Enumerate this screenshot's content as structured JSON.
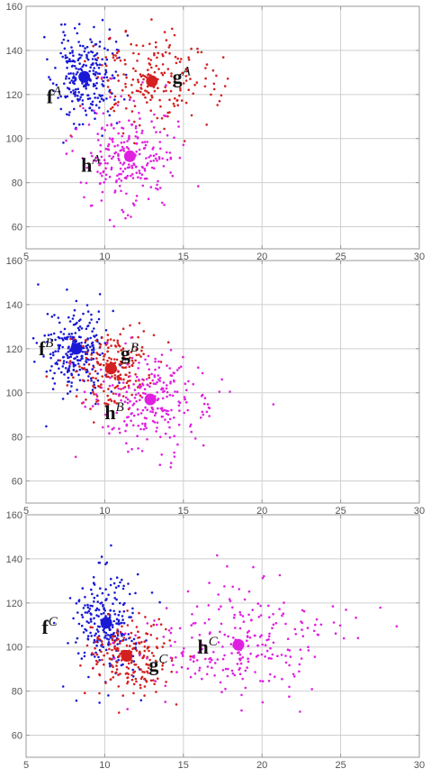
{
  "chart_data": [
    {
      "type": "scatter",
      "xlim": [
        5,
        30
      ],
      "ylim": [
        50,
        160
      ],
      "x_ticks": [
        5,
        10,
        15,
        20,
        25,
        30
      ],
      "y_ticks": [
        60,
        80,
        100,
        120,
        140,
        160
      ],
      "grid": true,
      "series": [
        {
          "key": "f",
          "color": "#1a1ad6",
          "center": [
            8.7,
            128
          ],
          "spread": [
            0.95,
            10.5
          ],
          "count": 250,
          "seed": 11,
          "label_base": "f",
          "label_sup": "A",
          "label_at": [
            6.3,
            116
          ]
        },
        {
          "key": "g",
          "color": "#d42020",
          "center": [
            13.0,
            126
          ],
          "spread": [
            2.0,
            11.0
          ],
          "count": 200,
          "seed": 23,
          "label_base": "g",
          "label_sup": "A",
          "label_at": [
            14.3,
            125
          ]
        },
        {
          "key": "h",
          "color": "#e020e0",
          "center": [
            11.6,
            92
          ],
          "spread": [
            1.5,
            11.5
          ],
          "count": 250,
          "seed": 37,
          "label_base": "h",
          "label_sup": "A",
          "label_at": [
            8.5,
            85
          ]
        }
      ]
    },
    {
      "type": "scatter",
      "xlim": [
        5,
        30
      ],
      "ylim": [
        50,
        160
      ],
      "x_ticks": [
        5,
        10,
        15,
        20,
        25,
        30
      ],
      "y_ticks": [
        60,
        80,
        100,
        120,
        140,
        160
      ],
      "grid": true,
      "series": [
        {
          "key": "f",
          "color": "#1a1ad6",
          "center": [
            8.2,
            120
          ],
          "spread": [
            0.95,
            10.5
          ],
          "count": 250,
          "seed": 41,
          "label_base": "f",
          "label_sup": "B",
          "label_at": [
            5.8,
            117
          ]
        },
        {
          "key": "g",
          "color": "#d42020",
          "center": [
            10.4,
            111
          ],
          "spread": [
            1.2,
            8.5
          ],
          "count": 200,
          "seed": 53,
          "label_base": "g",
          "label_sup": "B",
          "label_at": [
            11.0,
            115
          ]
        },
        {
          "key": "h",
          "color": "#e020e0",
          "center": [
            12.9,
            97
          ],
          "spread": [
            1.9,
            11.0
          ],
          "count": 250,
          "seed": 67,
          "label_base": "h",
          "label_sup": "B",
          "label_at": [
            10.0,
            88
          ]
        }
      ]
    },
    {
      "type": "scatter",
      "xlim": [
        5,
        30
      ],
      "ylim": [
        50,
        160
      ],
      "x_ticks": [
        5,
        10,
        15,
        20,
        25,
        30
      ],
      "y_ticks": [
        60,
        80,
        100,
        120,
        140,
        160
      ],
      "grid": true,
      "series": [
        {
          "key": "f",
          "color": "#1a1ad6",
          "center": [
            10.1,
            111
          ],
          "spread": [
            1.1,
            12.0
          ],
          "count": 250,
          "seed": 71,
          "label_base": "f",
          "label_sup": "C",
          "label_at": [
            6.0,
            106
          ]
        },
        {
          "key": "g",
          "color": "#d42020",
          "center": [
            11.4,
            96
          ],
          "spread": [
            1.4,
            9.0
          ],
          "count": 200,
          "seed": 83,
          "label_base": "g",
          "label_sup": "C",
          "label_at": [
            12.8,
            89
          ]
        },
        {
          "key": "h",
          "color": "#e020e0",
          "center": [
            18.5,
            101
          ],
          "spread": [
            3.1,
            13.0
          ],
          "count": 250,
          "seed": 97,
          "label_base": "h",
          "label_sup": "C",
          "label_at": [
            15.9,
            97
          ]
        }
      ]
    }
  ]
}
